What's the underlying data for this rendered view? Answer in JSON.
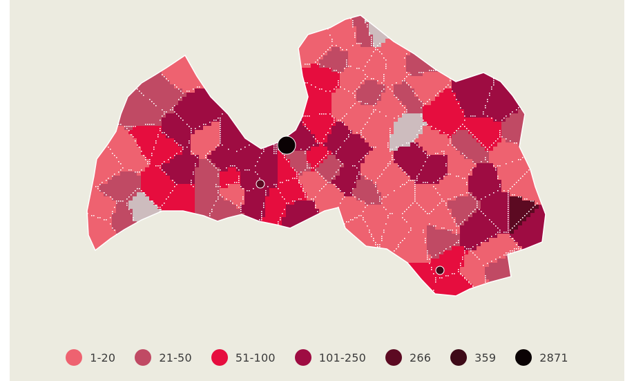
{
  "legend": [
    {
      "label": "1-20",
      "color": "#ee6270"
    },
    {
      "label": "21-50",
      "color": "#c04a64"
    },
    {
      "label": "51-100",
      "color": "#e60d3e"
    },
    {
      "label": "101-250",
      "color": "#9e0c42"
    },
    {
      "label": "266",
      "color": "#5c0a22"
    },
    {
      "label": "359",
      "color": "#3e0a18"
    },
    {
      "label": "2871",
      "color": "#0a0204"
    }
  ],
  "colors": {
    "background": "#ecebe0",
    "no_data": "#cdbcbe",
    "border": "#ffffff"
  }
}
